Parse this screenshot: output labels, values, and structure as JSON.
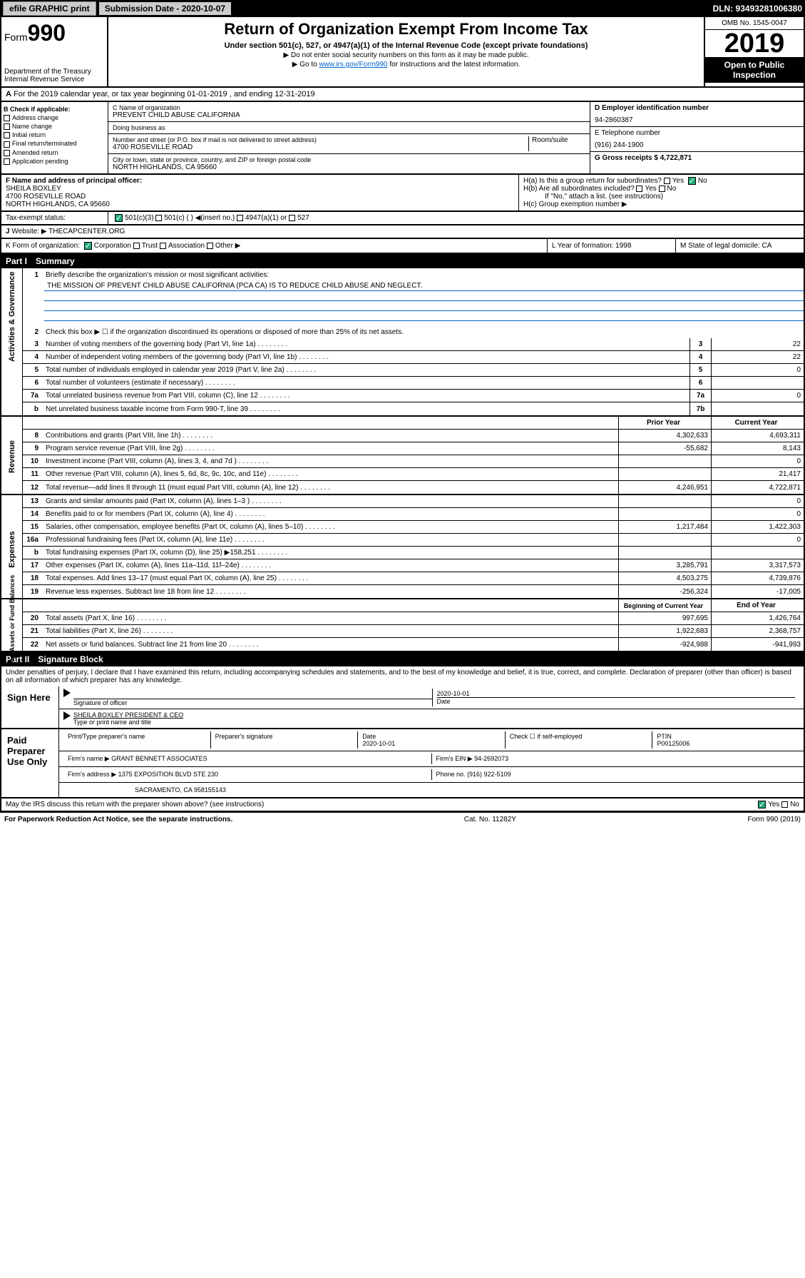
{
  "topbar": {
    "efile": "efile GRAPHIC print",
    "sublabel": "Submission Date - 2020-10-07",
    "dln": "DLN: 93493281006380"
  },
  "header": {
    "form": "Form",
    "num": "990",
    "title": "Return of Organization Exempt From Income Tax",
    "sub": "Under section 501(c), 527, or 4947(a)(1) of the Internal Revenue Code (except private foundations)",
    "note1": "▶ Do not enter social security numbers on this form as it may be made public.",
    "note2": "▶ Go to ",
    "link": "www.irs.gov/Form990",
    "note2b": " for instructions and the latest information.",
    "dept": "Department of the Treasury\nInternal Revenue Service",
    "omb": "OMB No. 1545-0047",
    "year": "2019",
    "open": "Open to Public Inspection"
  },
  "rowA": "For the 2019 calendar year, or tax year beginning 01-01-2019    , and ending 12-31-2019",
  "colB": {
    "hdr": "B Check if applicable:",
    "items": [
      "Address change",
      "Name change",
      "Initial return",
      "Final return/terminated",
      "Amended return",
      "Application pending"
    ]
  },
  "colC": {
    "nameLabel": "C Name of organization",
    "name": "PREVENT CHILD ABUSE CALIFORNIA",
    "dbaLabel": "Doing business as",
    "addrLabel": "Number and street (or P.O. box if mail is not delivered to street address)",
    "room": "Room/suite",
    "addr": "4700 ROSEVILLE ROAD",
    "cityLabel": "City or town, state or province, country, and ZIP or foreign postal code",
    "city": "NORTH HIGHLANDS, CA  95660"
  },
  "colD": {
    "einLabel": "D Employer identification number",
    "ein": "94-2860387",
    "telLabel": "E Telephone number",
    "tel": "(916) 244-1900",
    "grossLabel": "G Gross receipts $ 4,722,871"
  },
  "colF": {
    "label": "F  Name and address of principal officer:",
    "name": "SHEILA BOXLEY",
    "addr": "4700 ROSEVILLE ROAD",
    "city": "NORTH HIGHLANDS, CA  95660"
  },
  "colH": {
    "a": "H(a)  Is this a group return for subordinates?",
    "b": "H(b)  Are all subordinates included?",
    "note": "If \"No,\" attach a list. (see instructions)",
    "c": "H(c)  Group exemption number ▶"
  },
  "rowI": {
    "label": "Tax-exempt status:",
    "opts": [
      "501(c)(3)",
      "501(c) (  ) ◀(insert no.)",
      "4947(a)(1) or",
      "527"
    ]
  },
  "rowJ": {
    "label": "Website: ▶",
    "val": "THECAPCENTER.ORG"
  },
  "rowK": {
    "label": "K Form of organization:",
    "opts": [
      "Corporation",
      "Trust",
      "Association",
      "Other ▶"
    ],
    "yearLabel": "L Year of formation: 1998",
    "stateLabel": "M State of legal domicile: CA"
  },
  "part1": {
    "hdr": "Part I",
    "title": "Summary"
  },
  "summary": {
    "l1": "Briefly describe the organization's mission or most significant activities:",
    "mission": "THE MISSION OF PREVENT CHILD ABUSE CALIFORNIA (PCA CA) IS TO REDUCE CHILD ABUSE AND NEGLECT.",
    "l2": "Check this box ▶ ☐  if the organization discontinued its operations or disposed of more than 25% of its net assets.",
    "lines": [
      {
        "n": "3",
        "t": "Number of voting members of the governing body (Part VI, line 1a)",
        "b": "3",
        "v": "22"
      },
      {
        "n": "4",
        "t": "Number of independent voting members of the governing body (Part VI, line 1b)",
        "b": "4",
        "v": "22"
      },
      {
        "n": "5",
        "t": "Total number of individuals employed in calendar year 2019 (Part V, line 2a)",
        "b": "5",
        "v": "0"
      },
      {
        "n": "6",
        "t": "Total number of volunteers (estimate if necessary)",
        "b": "6",
        "v": ""
      },
      {
        "n": "7a",
        "t": "Total unrelated business revenue from Part VIII, column (C), line 12",
        "b": "7a",
        "v": "0"
      },
      {
        "n": "b",
        "t": "Net unrelated business taxable income from Form 990-T, line 39",
        "b": "7b",
        "v": ""
      }
    ],
    "colHdrP": "Prior Year",
    "colHdrC": "Current Year",
    "rev": [
      {
        "n": "8",
        "t": "Contributions and grants (Part VIII, line 1h)",
        "p": "4,302,633",
        "c": "4,693,311"
      },
      {
        "n": "9",
        "t": "Program service revenue (Part VIII, line 2g)",
        "p": "-55,682",
        "c": "8,143"
      },
      {
        "n": "10",
        "t": "Investment income (Part VIII, column (A), lines 3, 4, and 7d )",
        "p": "",
        "c": "0"
      },
      {
        "n": "11",
        "t": "Other revenue (Part VIII, column (A), lines 5, 6d, 8c, 9c, 10c, and 11e)",
        "p": "",
        "c": "21,417"
      },
      {
        "n": "12",
        "t": "Total revenue—add lines 8 through 11 (must equal Part VIII, column (A), line 12)",
        "p": "4,246,951",
        "c": "4,722,871"
      }
    ],
    "exp": [
      {
        "n": "13",
        "t": "Grants and similar amounts paid (Part IX, column (A), lines 1–3 )",
        "p": "",
        "c": "0"
      },
      {
        "n": "14",
        "t": "Benefits paid to or for members (Part IX, column (A), line 4)",
        "p": "",
        "c": "0"
      },
      {
        "n": "15",
        "t": "Salaries, other compensation, employee benefits (Part IX, column (A), lines 5–10)",
        "p": "1,217,484",
        "c": "1,422,303"
      },
      {
        "n": "16a",
        "t": "Professional fundraising fees (Part IX, column (A), line 11e)",
        "p": "",
        "c": "0"
      },
      {
        "n": "b",
        "t": "Total fundraising expenses (Part IX, column (D), line 25) ▶158,251",
        "p": "",
        "c": ""
      },
      {
        "n": "17",
        "t": "Other expenses (Part IX, column (A), lines 11a–11d, 11f–24e)",
        "p": "3,285,791",
        "c": "3,317,573"
      },
      {
        "n": "18",
        "t": "Total expenses. Add lines 13–17 (must equal Part IX, column (A), line 25)",
        "p": "4,503,275",
        "c": "4,739,876"
      },
      {
        "n": "19",
        "t": "Revenue less expenses. Subtract line 18 from line 12",
        "p": "-256,324",
        "c": "-17,005"
      }
    ],
    "colHdrB": "Beginning of Current Year",
    "colHdrE": "End of Year",
    "net": [
      {
        "n": "20",
        "t": "Total assets (Part X, line 16)",
        "p": "997,695",
        "c": "1,426,764"
      },
      {
        "n": "21",
        "t": "Total liabilities (Part X, line 26)",
        "p": "1,922,683",
        "c": "2,368,757"
      },
      {
        "n": "22",
        "t": "Net assets or fund balances. Subtract line 21 from line 20",
        "p": "-924,988",
        "c": "-941,993"
      }
    ]
  },
  "vlabels": {
    "gov": "Activities & Governance",
    "rev": "Revenue",
    "exp": "Expenses",
    "net": "Net Assets or Fund Balances"
  },
  "part2": {
    "hdr": "Part II",
    "title": "Signature Block"
  },
  "sig": {
    "perjury": "Under penalties of perjury, I declare that I have examined this return, including accompanying schedules and statements, and to the best of my knowledge and belief, it is true, correct, and complete. Declaration of preparer (other than officer) is based on all information of which preparer has any knowledge.",
    "signHere": "Sign Here",
    "date": "2020-10-01",
    "dateLabel": "Date",
    "sigOfficer": "Signature of officer",
    "name": "SHEILA BOXLEY PRESIDENT & CEO",
    "nameLabel": "Type or print name and title",
    "paid": "Paid Preparer Use Only",
    "prepName": "Print/Type preparer's name",
    "prepSig": "Preparer's signature",
    "prepDate": "Date",
    "prepDateVal": "2020-10-01",
    "check": "Check ☐ if self-employed",
    "ptin": "PTIN",
    "ptinVal": "P00125006",
    "firmName": "Firm's name    ▶ GRANT BENNETT ASSOCIATES",
    "firmEin": "Firm's EIN ▶ 94-2692073",
    "firmAddr": "Firm's address ▶ 1375 EXPOSITION BLVD STE 230",
    "phone": "Phone no. (916) 922-5109",
    "firmCity": "SACRAMENTO, CA  958155143",
    "discuss": "May the IRS discuss this return with the preparer shown above? (see instructions)"
  },
  "footer": {
    "l": "For Paperwork Reduction Act Notice, see the separate instructions.",
    "m": "Cat. No. 11282Y",
    "r": "Form 990 (2019)"
  },
  "yesno": {
    "yes": "Yes",
    "no": "No"
  }
}
